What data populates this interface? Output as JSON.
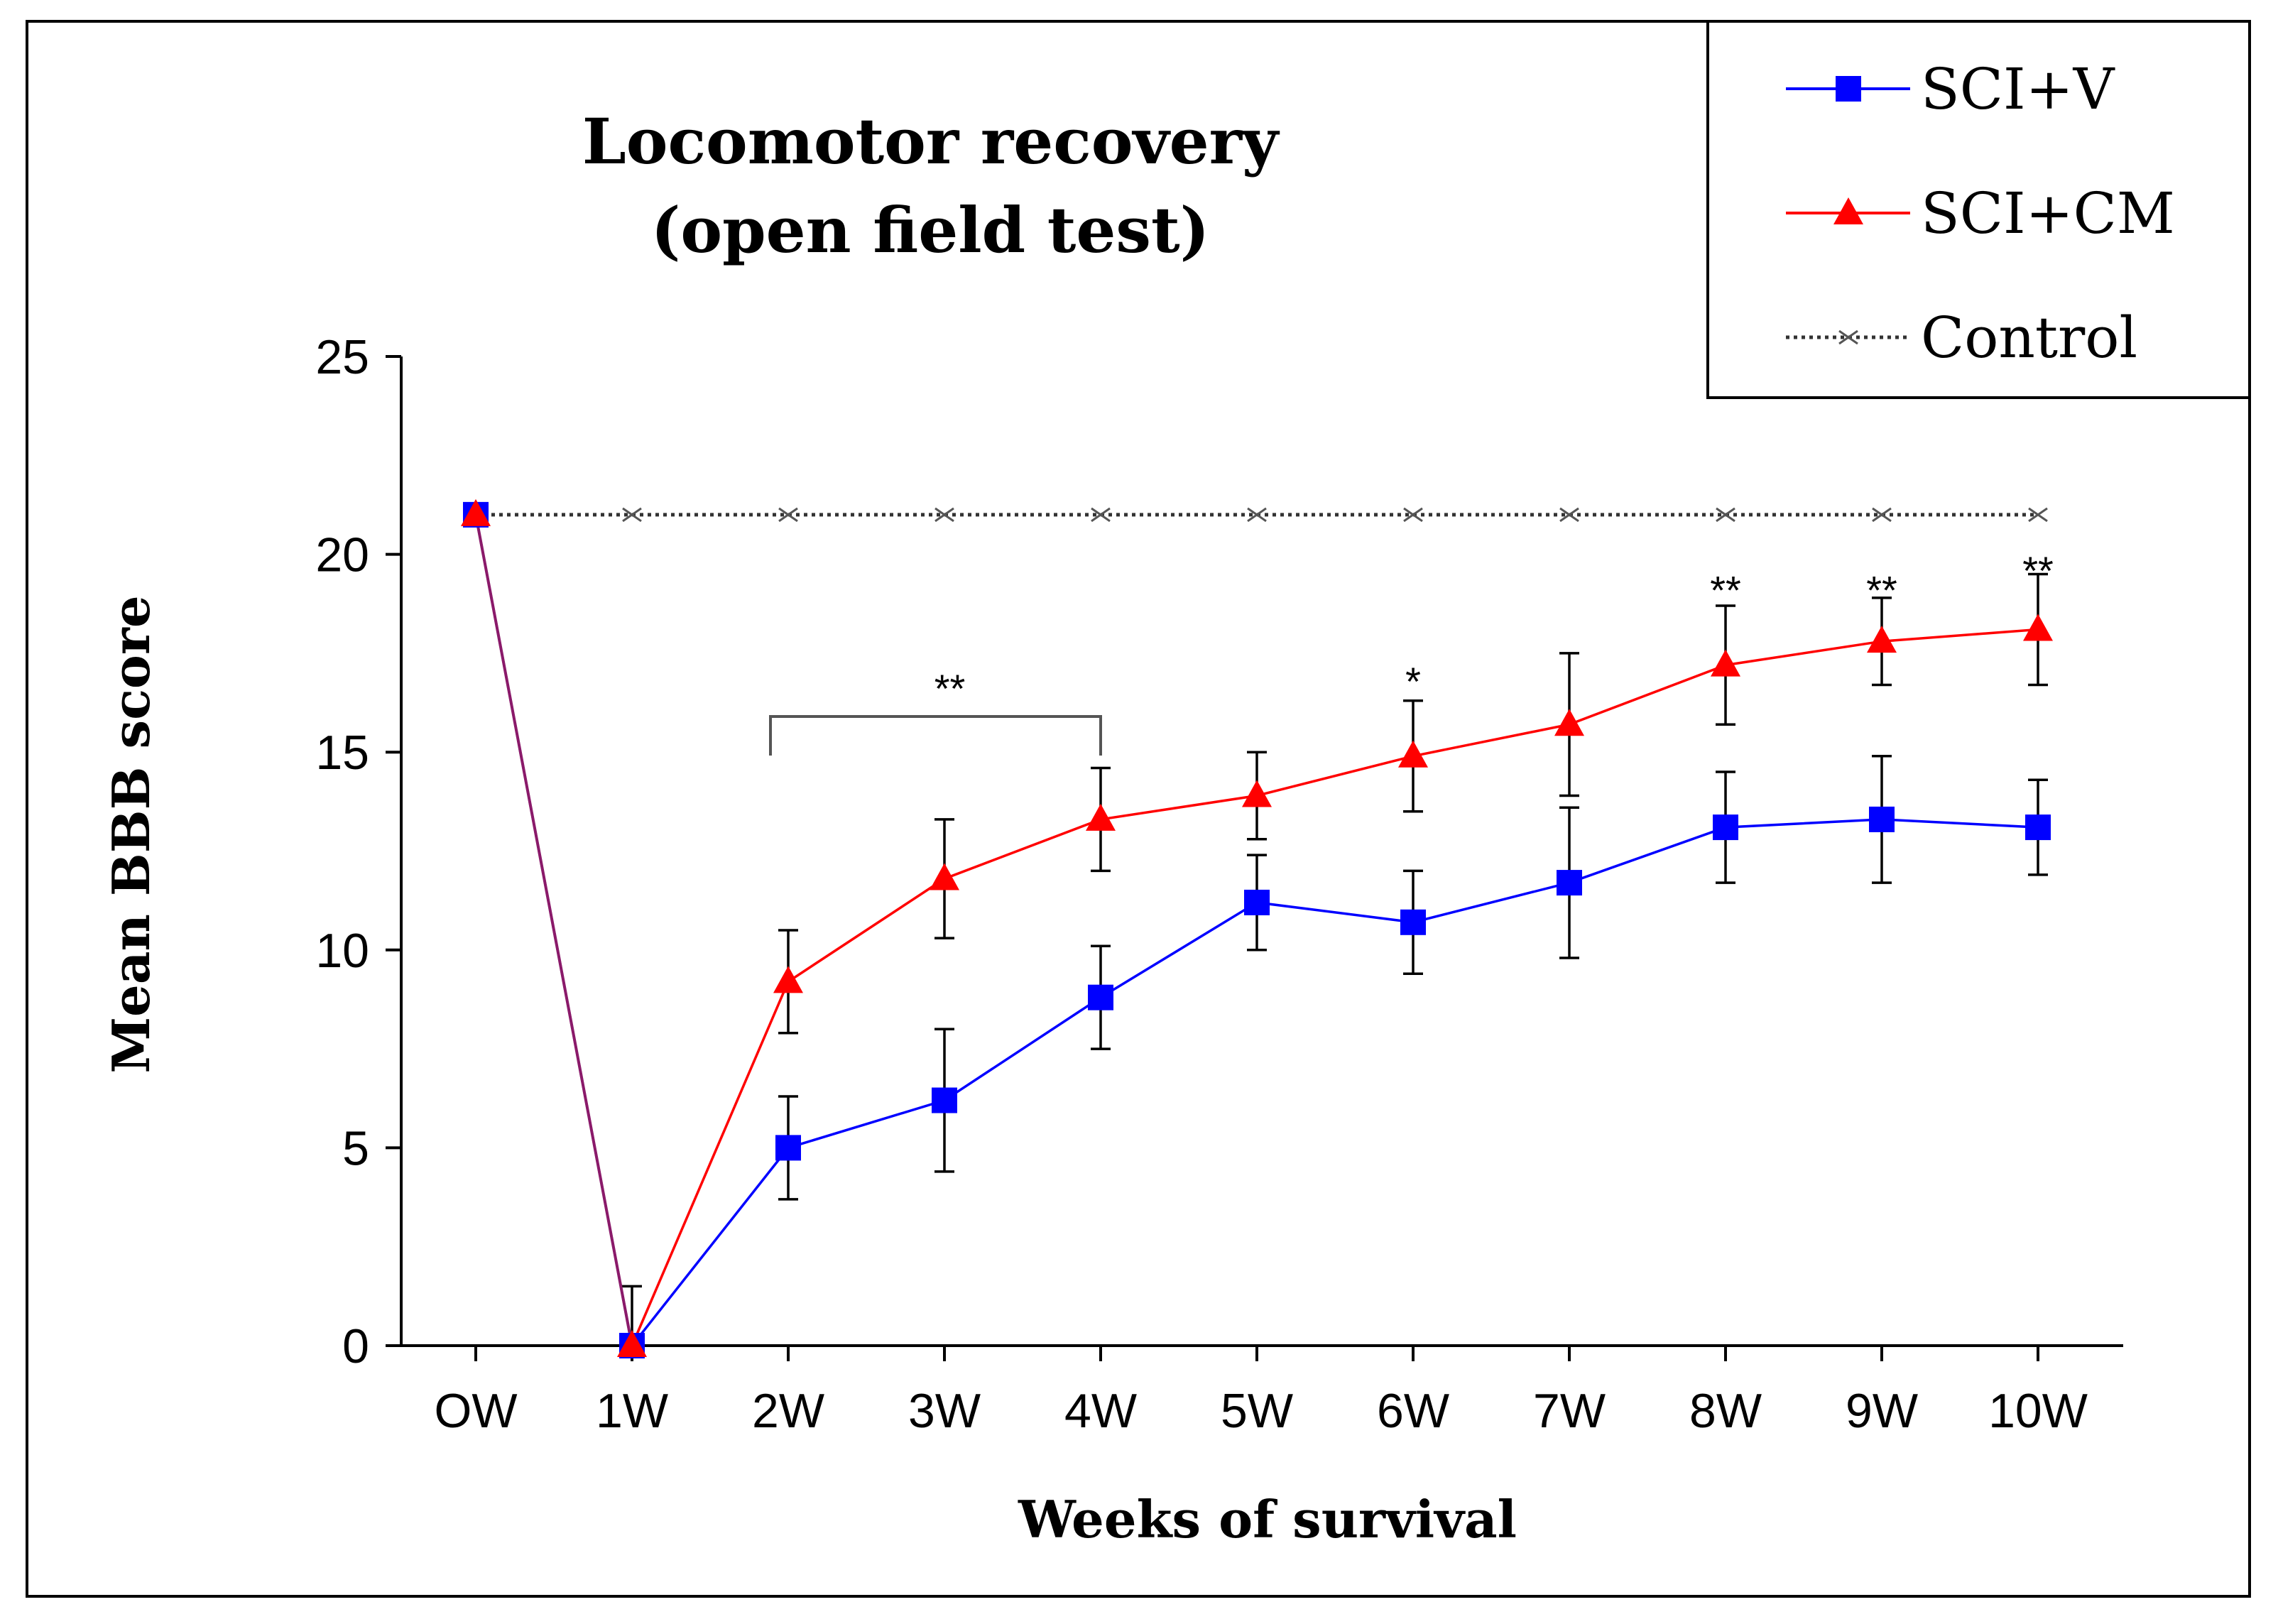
{
  "chart_data": {
    "type": "line",
    "title": [
      "Locomotor recovery",
      "(open field test)"
    ],
    "xlabel": "Weeks of survival",
    "ylabel": "Mean BBB score",
    "categories": [
      "OW",
      "1W",
      "2W",
      "3W",
      "4W",
      "5W",
      "6W",
      "7W",
      "8W",
      "9W",
      "10W"
    ],
    "ylim": [
      0,
      25
    ],
    "yticks": [
      0,
      5,
      10,
      15,
      20,
      25
    ],
    "legend_position": "top-right",
    "series": [
      {
        "name": "SCI+V",
        "color": "#0000ff",
        "marker": "square",
        "line": "solid",
        "values": [
          21,
          0,
          5.0,
          6.2,
          8.8,
          11.2,
          10.7,
          11.7,
          13.1,
          13.3,
          13.1
        ],
        "errors": [
          0,
          0,
          1.3,
          1.8,
          1.3,
          1.2,
          1.3,
          1.9,
          1.4,
          1.6,
          1.2
        ]
      },
      {
        "name": "SCI+CM",
        "color": "#ff0000",
        "marker": "triangle",
        "line": "solid",
        "values": [
          21,
          0,
          9.2,
          11.8,
          13.3,
          13.9,
          14.9,
          15.7,
          17.2,
          17.8,
          18.1
        ],
        "errors": [
          0,
          1.5,
          1.3,
          1.5,
          1.3,
          1.1,
          1.4,
          1.8,
          1.5,
          1.1,
          1.4
        ]
      },
      {
        "name": "Control",
        "color": "#444444",
        "marker": "x",
        "line": "dotted",
        "values": [
          21,
          21,
          21,
          21,
          21,
          21,
          21,
          21,
          21,
          21,
          21
        ],
        "errors": [
          0,
          0,
          0,
          0,
          0,
          0,
          0,
          0,
          0,
          0,
          0
        ]
      }
    ],
    "annotations": [
      {
        "text": "**",
        "type": "bracket",
        "from": "2W",
        "to": "4W",
        "y": 15.9
      },
      {
        "text": "*",
        "at": "6W",
        "y": 16.8
      },
      {
        "text": "**",
        "at": "8W",
        "y": 19.1
      },
      {
        "text": "**",
        "at": "9W",
        "y": 19.1
      },
      {
        "text": "**",
        "at": "10W",
        "y": 19.6
      }
    ]
  }
}
